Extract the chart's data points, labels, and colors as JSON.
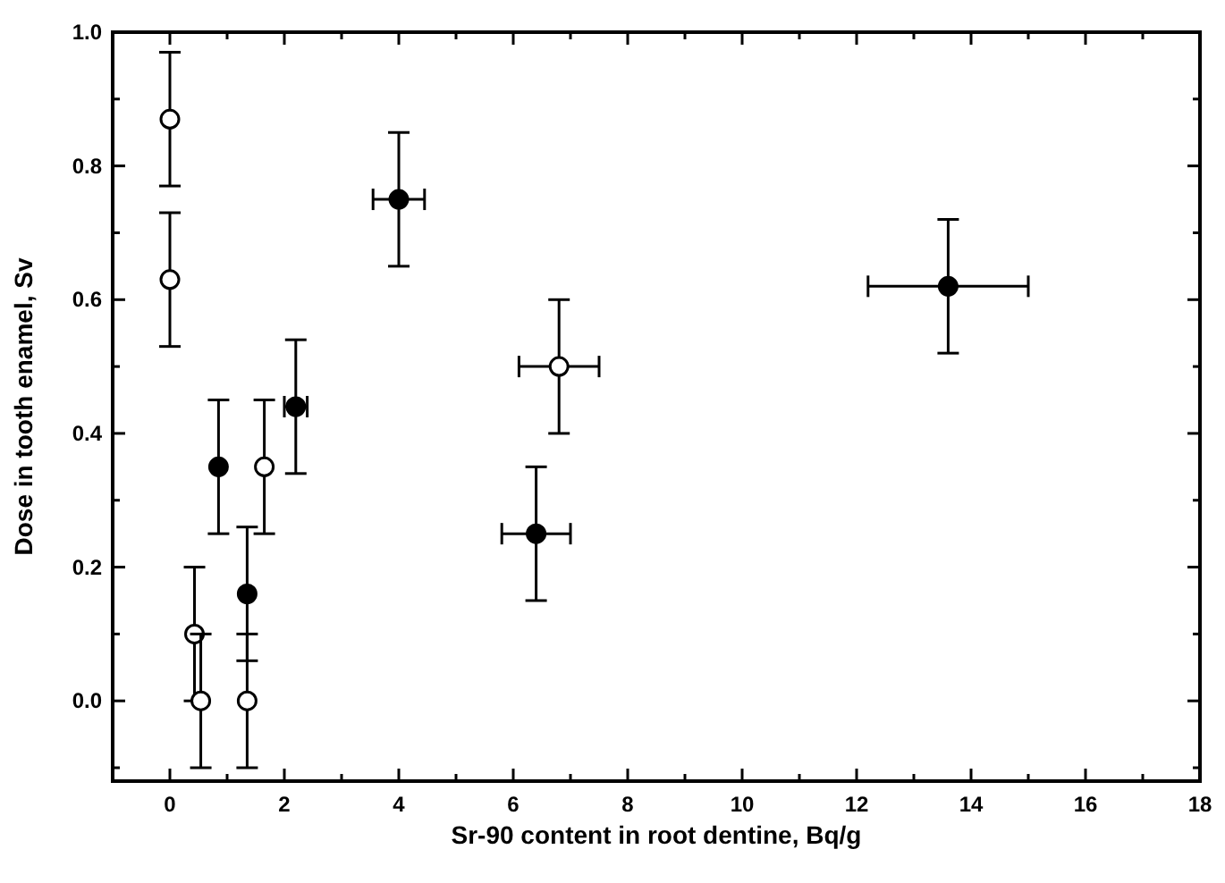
{
  "chart_data": {
    "type": "scatter",
    "xlabel": "Sr-90 content in root dentine, Bq/g",
    "ylabel": "Dose in tooth enamel, Sv",
    "xlim": [
      -1,
      18
    ],
    "ylim": [
      -0.12,
      1.0
    ],
    "xticks": [
      0,
      {
        "value": 1,
        "label": null
      },
      2,
      {
        "value": 3,
        "label": null
      },
      4,
      {
        "value": 5,
        "label": null
      },
      6,
      {
        "value": 7,
        "label": null
      },
      8,
      {
        "value": 9,
        "label": null
      },
      10,
      {
        "value": 11,
        "label": null
      },
      12,
      {
        "value": 13,
        "label": null
      },
      14,
      {
        "value": 15,
        "label": null
      },
      16,
      {
        "value": 17,
        "label": null
      },
      18
    ],
    "yticks": [
      {
        "value": -0.1,
        "label": null
      },
      {
        "value": 0,
        "label": "0.0"
      },
      {
        "value": 0.1,
        "label": null
      },
      {
        "value": 0.2,
        "label": "0.2"
      },
      {
        "value": 0.3,
        "label": null
      },
      {
        "value": 0.4,
        "label": "0.4"
      },
      {
        "value": 0.5,
        "label": null
      },
      {
        "value": 0.6,
        "label": "0.6"
      },
      {
        "value": 0.7,
        "label": null
      },
      {
        "value": 0.8,
        "label": "0.8"
      },
      {
        "value": 0.9,
        "label": null
      },
      {
        "value": 1.0,
        "label": "1.0"
      }
    ],
    "grid": false,
    "marker": "circle",
    "series": [
      {
        "color": "#ffffff",
        "x": [
          0.0,
          0.0,
          0.43,
          0.54,
          1.65,
          1.35,
          6.8
        ],
        "values": [
          0.87,
          0.63,
          0.1,
          0.0,
          0.35,
          0.0,
          0.5
        ],
        "errors": [
          0.1,
          0.1,
          0.1,
          0.1,
          0.1,
          0.1,
          0.1
        ],
        "xerrors": [
          null,
          null,
          null,
          null,
          null,
          null,
          0.7
        ]
      },
      {
        "color": "#000000",
        "x": [
          0.85,
          1.35,
          2.2,
          4.0,
          6.4,
          13.6
        ],
        "values": [
          0.35,
          0.16,
          0.44,
          0.75,
          0.25,
          0.62
        ],
        "errors": [
          0.1,
          0.1,
          0.1,
          0.1,
          0.1,
          0.1
        ],
        "xerrors": [
          null,
          null,
          0.2,
          0.45,
          0.6,
          1.4
        ]
      }
    ]
  }
}
